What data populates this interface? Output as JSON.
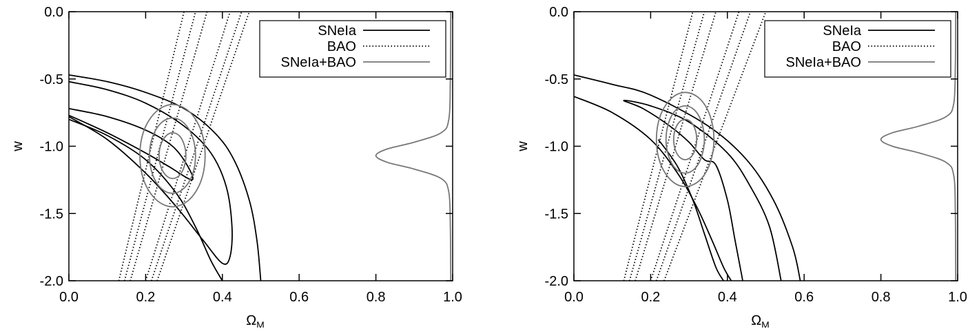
{
  "chart_data": [
    {
      "type": "contour",
      "x_label": "Ω",
      "x_label_sub": "M",
      "y_label": "w",
      "xlim": [
        0,
        1
      ],
      "ylim": [
        -2,
        0
      ],
      "xticks": [
        {
          "value": 0,
          "label": "0.0"
        },
        0.2,
        0.4,
        0.6,
        0.8,
        {
          "value": 1,
          "label": "1.0"
        }
      ],
      "yticks": [
        {
          "value": 0,
          "label": "0.0"
        },
        -0.5,
        {
          "value": -1,
          "label": "-1.0"
        },
        -1.5,
        {
          "value": -2,
          "label": "-2.0"
        }
      ],
      "legend": "upper right",
      "series": [
        {
          "name": "SNeIa",
          "color": "#000000",
          "dash": "solid",
          "contours": [
            {
              "x": [
                0,
                0.1,
                0.2,
                0.3,
                0.38,
                0.43,
                0.47,
                0.49,
                0.5,
                null,
                0,
                0.1,
                0.2,
                0.28,
                0.33,
                0.37,
                0.4
              ],
              "y": [
                -0.47,
                -0.52,
                -0.6,
                -0.72,
                -0.9,
                -1.1,
                -1.4,
                -1.7,
                -2.0,
                null,
                -0.8,
                -0.92,
                -1.1,
                -1.35,
                -1.6,
                -1.85,
                -2.0
              ]
            },
            {
              "x": [
                0,
                0.1,
                0.2,
                0.3,
                0.37,
                0.41,
                0.425,
                0.42,
                0.4,
                0.35,
                0.28,
                0.2,
                0.1,
                0
              ],
              "y": [
                -0.52,
                -0.58,
                -0.68,
                -0.85,
                -1.05,
                -1.3,
                -1.6,
                -1.82,
                -1.87,
                -1.7,
                -1.45,
                -1.2,
                -0.95,
                -0.78
              ]
            },
            {
              "x": [
                0,
                0.1,
                0.2,
                0.27,
                0.31,
                0.32,
                0.26,
                0.2,
                0.1,
                0
              ],
              "y": [
                -0.72,
                -0.78,
                -0.88,
                -1.0,
                -1.15,
                -1.25,
                -1.15,
                -1.05,
                -0.9,
                -0.77
              ]
            }
          ]
        },
        {
          "name": "BAO",
          "color": "#000000",
          "dash": "dotted",
          "contours": [
            {
              "x": [
                0.16,
                0.36,
                null,
                0.2,
                0.42
              ],
              "y": [
                -2.0,
                0.0,
                null,
                -2.0,
                0.0
              ]
            },
            {
              "x": [
                0.145,
                0.33,
                null,
                0.215,
                0.45
              ],
              "y": [
                -2.0,
                0.0,
                null,
                -2.0,
                0.0
              ]
            },
            {
              "x": [
                0.13,
                0.3,
                null,
                0.23,
                0.47
              ],
              "y": [
                -2.0,
                0.0,
                null,
                -2.0,
                0.0
              ]
            }
          ]
        },
        {
          "name": "SNeIa+BAO",
          "color": "#777777",
          "dash": "solid",
          "closed": true,
          "contours": [
            {
              "x": [
                0.305,
                0.3,
                0.288,
                0.27,
                0.253,
                0.24,
                0.235,
                0.24,
                0.253,
                0.27,
                0.288,
                0.3
              ],
              "y": [
                -1.07,
                -0.985,
                -0.923,
                -0.9,
                -0.923,
                -0.985,
                -1.07,
                -1.155,
                -1.217,
                -1.24,
                -1.217,
                -1.155
              ]
            },
            {
              "x": [
                0.33,
                0.322,
                0.3,
                0.27,
                0.24,
                0.218,
                0.21,
                0.218,
                0.24,
                0.27,
                0.3,
                0.322
              ],
              "y": [
                -1.07,
                -0.93,
                -0.828,
                -0.79,
                -0.828,
                -0.93,
                -1.07,
                -1.21,
                -1.312,
                -1.35,
                -1.312,
                -1.21
              ]
            },
            {
              "x": [
                0.355,
                0.344,
                0.313,
                0.27,
                0.228,
                0.196,
                0.185,
                0.196,
                0.228,
                0.27,
                0.313,
                0.344
              ],
              "y": [
                -1.07,
                -0.88,
                -0.741,
                -0.69,
                -0.741,
                -0.88,
                -1.07,
                -1.26,
                -1.399,
                -1.45,
                -1.399,
                -1.26
              ]
            }
          ],
          "profile": {
            "x": [
              0.995,
              0.994,
              0.99,
              0.97,
              0.9,
              0.83,
              0.8,
              0.83,
              0.9,
              0.97,
              0.99,
              0.994,
              0.995
            ],
            "y": [
              0,
              -0.5,
              -0.8,
              -0.9,
              -0.97,
              -1.02,
              -1.07,
              -1.12,
              -1.17,
              -1.24,
              -1.34,
              -1.6,
              -2.0
            ]
          }
        }
      ]
    },
    {
      "type": "contour",
      "x_label": "Ω",
      "x_label_sub": "M",
      "y_label": "w",
      "xlim": [
        0,
        1
      ],
      "ylim": [
        -2,
        0
      ],
      "xticks": [
        {
          "value": 0,
          "label": "0.0"
        },
        0.2,
        0.4,
        0.6,
        0.8,
        {
          "value": 1,
          "label": "1.0"
        }
      ],
      "yticks": [
        {
          "value": 0,
          "label": "0.0"
        },
        -0.5,
        {
          "value": -1,
          "label": "-1.0"
        },
        -1.5,
        {
          "value": -2,
          "label": "-2.0"
        }
      ],
      "legend": "upper right",
      "series": [
        {
          "name": "SNeIa",
          "color": "#000000",
          "dash": "solid",
          "contours": [
            {
              "x": [
                0,
                0.1,
                0.2,
                0.35,
                0.45,
                0.52,
                0.57,
                0.59,
                null,
                0,
                0.1,
                0.2,
                0.27,
                0.32,
                0.36,
                0.39,
                0.41
              ],
              "y": [
                -0.47,
                -0.54,
                -0.62,
                -0.85,
                -1.1,
                -1.4,
                -1.75,
                -2.0,
                null,
                -0.63,
                -0.75,
                -0.95,
                -1.2,
                -1.45,
                -1.7,
                -1.9,
                -2.0
              ]
            },
            {
              "x": [
                0.54,
                0.51,
                0.46,
                0.4,
                0.3,
                0.2,
                0.13,
                0.18,
                0.25,
                0.3,
                0.34,
                0.37,
                0.4,
                0.42,
                0.44
              ],
              "y": [
                -2.0,
                -1.6,
                -1.3,
                -1.05,
                -0.82,
                -0.7,
                -0.66,
                -0.72,
                -0.85,
                -0.97,
                -1.1,
                -1.14,
                -1.4,
                -1.7,
                -2.0
              ]
            },
            {
              "x": [
                0.22,
                0.27,
                0.31,
                0.34,
                0.37,
                0.39
              ],
              "y": [
                -0.95,
                -1.15,
                -1.4,
                -1.65,
                -1.9,
                -2.0
              ]
            }
          ]
        },
        {
          "name": "BAO",
          "color": "#000000",
          "dash": "dotted",
          "contours": [
            {
              "x": [
                0.16,
                0.37,
                null,
                0.2,
                0.43
              ],
              "y": [
                -2.0,
                0.0,
                null,
                -2.0,
                0.0
              ]
            },
            {
              "x": [
                0.145,
                0.34,
                null,
                0.215,
                0.46
              ],
              "y": [
                -2.0,
                0.0,
                null,
                -2.0,
                0.0
              ]
            },
            {
              "x": [
                0.13,
                0.31,
                null,
                0.235,
                0.5
              ],
              "y": [
                -2.0,
                0.0,
                null,
                -2.0,
                0.0
              ]
            }
          ]
        },
        {
          "name": "SNeIa+BAO",
          "color": "#777777",
          "dash": "solid",
          "closed": true,
          "contours": [
            {
              "x": [
                0.32,
                0.316,
                0.305,
                0.29,
                0.275,
                0.264,
                0.26,
                0.264,
                0.275,
                0.29,
                0.305,
                0.316
              ],
              "y": [
                -0.95,
                -0.875,
                -0.82,
                -0.8,
                -0.82,
                -0.875,
                -0.95,
                -1.025,
                -1.08,
                -1.1,
                -1.08,
                -1.025
              ]
            },
            {
              "x": [
                0.34,
                0.333,
                0.315,
                0.29,
                0.265,
                0.247,
                0.24,
                0.247,
                0.265,
                0.29,
                0.315,
                0.333
              ],
              "y": [
                -0.95,
                -0.825,
                -0.733,
                -0.7,
                -0.733,
                -0.825,
                -0.95,
                -1.075,
                -1.167,
                -1.2,
                -1.167,
                -1.075
              ]
            },
            {
              "x": [
                0.365,
                0.355,
                0.328,
                0.29,
                0.253,
                0.225,
                0.215,
                0.225,
                0.253,
                0.29,
                0.328,
                0.355
              ],
              "y": [
                -0.95,
                -0.775,
                -0.647,
                -0.6,
                -0.647,
                -0.775,
                -0.95,
                -1.125,
                -1.253,
                -1.3,
                -1.253,
                -1.125
              ]
            }
          ],
          "profile": {
            "x": [
              0.995,
              0.994,
              0.99,
              0.97,
              0.9,
              0.83,
              0.8,
              0.83,
              0.9,
              0.97,
              0.99,
              0.994,
              0.995
            ],
            "y": [
              0,
              -0.4,
              -0.68,
              -0.78,
              -0.85,
              -0.9,
              -0.95,
              -1.0,
              -1.05,
              -1.12,
              -1.22,
              -1.5,
              -2.0
            ]
          }
        }
      ]
    }
  ]
}
